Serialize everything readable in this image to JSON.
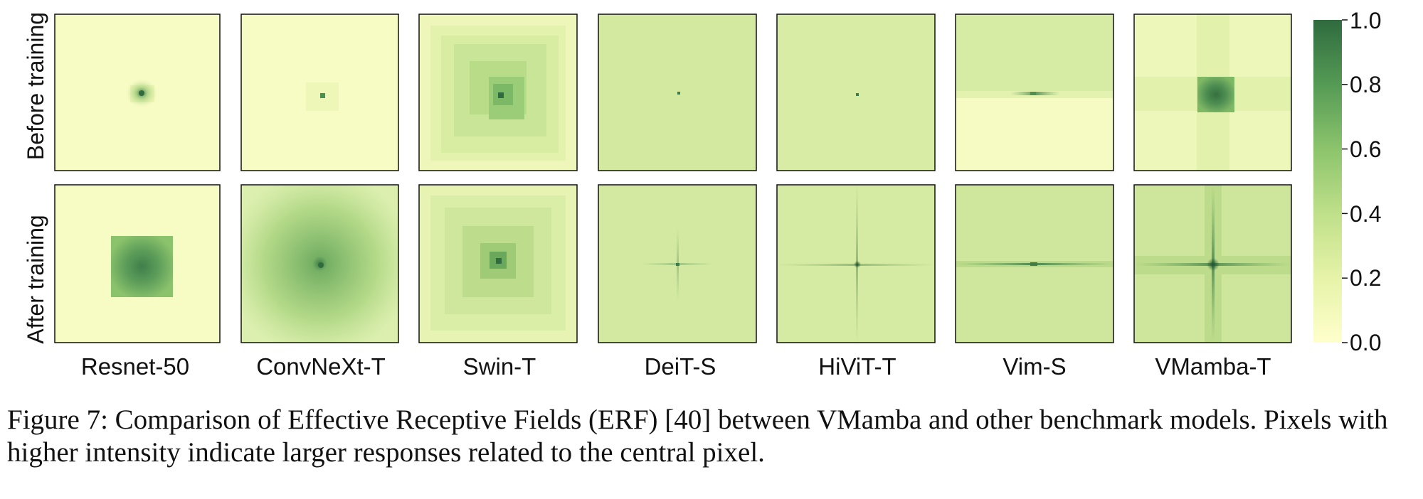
{
  "figure": {
    "row_labels": [
      "Before training",
      "After training"
    ],
    "models": [
      "Resnet-50",
      "ConvNeXt-T",
      "Swin-T",
      "DeiT-S",
      "HiViT-T",
      "Vim-S",
      "VMamba-T"
    ],
    "colorbar": {
      "ticks": [
        "1.0",
        "0.8",
        "0.6",
        "0.4",
        "0.2",
        "0.0"
      ],
      "low_color": "#ffffcc",
      "mid_color": "#a6d96a",
      "high_color": "#2f6b3e"
    },
    "caption": "Figure 7: Comparison of Effective Receptive Fields (ERF) [40] between VMamba and other benchmark models. Pixels with higher intensity indicate larger responses related to the central pixel."
  }
}
